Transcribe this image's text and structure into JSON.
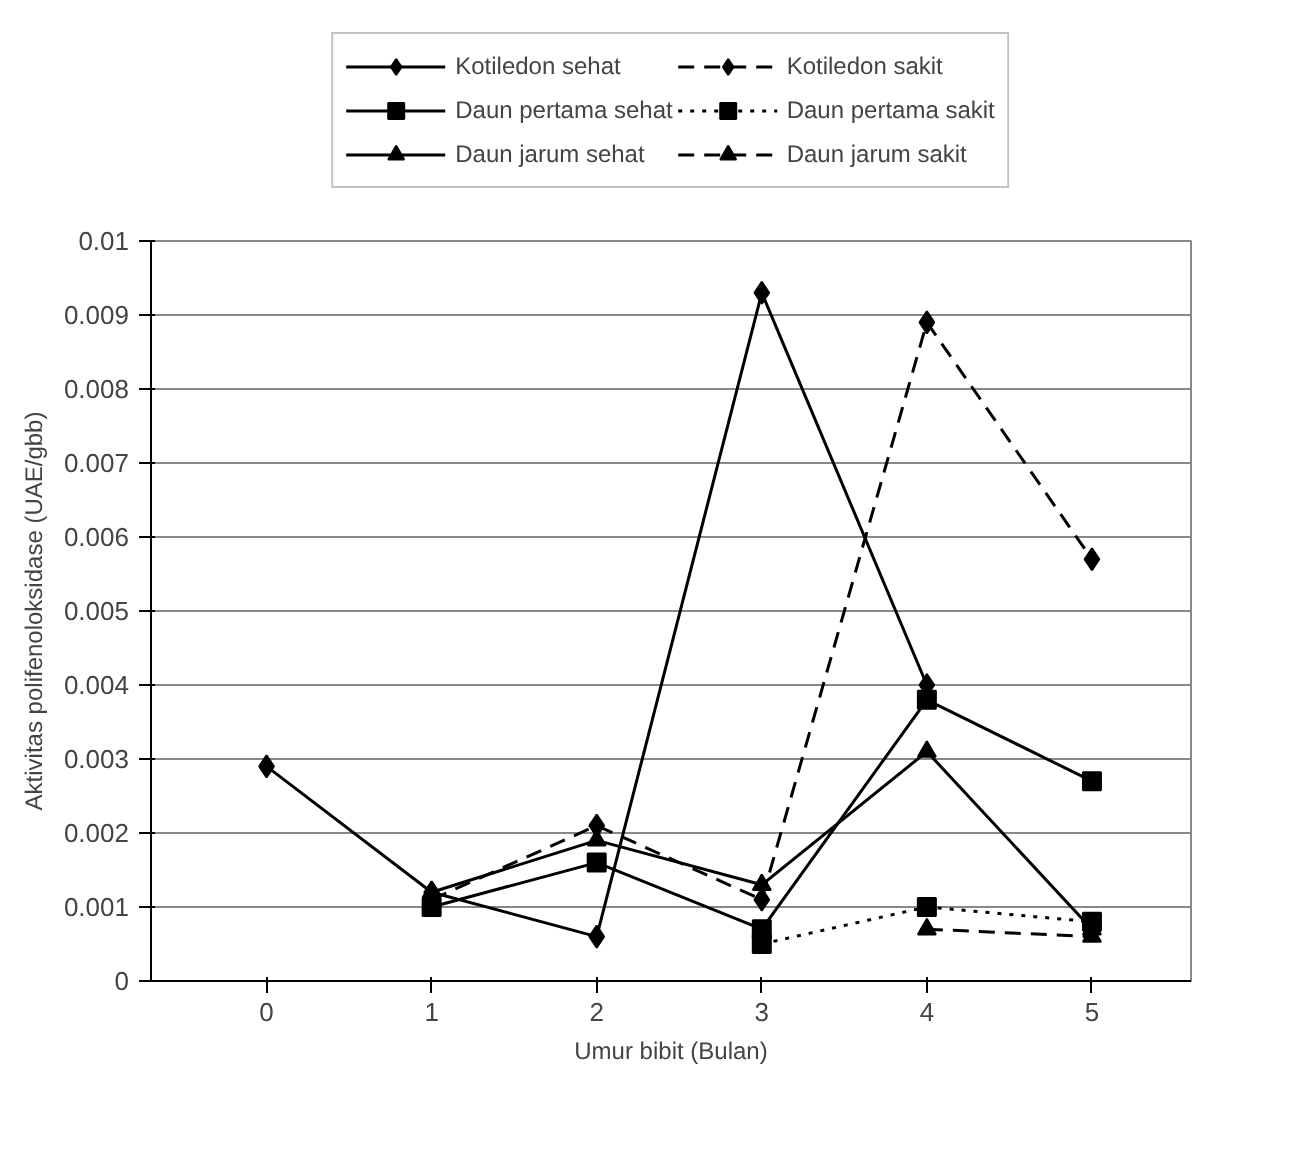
{
  "chart_data": {
    "type": "line",
    "xlabel": "Umur bibit (Bulan)",
    "ylabel": "Aktivitas polifenoloksidase (UAE/gbb)",
    "categories": [
      "0",
      "1",
      "2",
      "3",
      "4",
      "5"
    ],
    "ylim": [
      0,
      0.01
    ],
    "yticks": [
      0,
      0.001,
      0.002,
      0.003,
      0.004,
      0.005,
      0.006,
      0.007,
      0.008,
      0.009,
      0.01
    ],
    "grid": "y",
    "legend": "top",
    "series": [
      {
        "name": "Kotiledon sehat",
        "color": "#000000",
        "marker": "diamond",
        "line_style": "solid",
        "values": [
          0.0029,
          0.0012,
          0.0006,
          0.0093,
          0.004,
          null
        ]
      },
      {
        "name": "Daun pertama sehat",
        "color": "#000000",
        "marker": "square",
        "line_style": "solid",
        "values": [
          null,
          0.001,
          0.0016,
          0.0007,
          0.0038,
          0.0027
        ]
      },
      {
        "name": "Daun jarum sehat",
        "color": "#000000",
        "marker": "triangle",
        "line_style": "solid",
        "values": [
          null,
          0.0012,
          0.0019,
          0.0013,
          0.0031,
          0.0007
        ]
      },
      {
        "name": "Kotiledon sakit",
        "color": "#000000",
        "marker": "diamond",
        "line_style": "dashed",
        "values": [
          null,
          0.0011,
          0.0021,
          0.0011,
          0.0089,
          0.0057
        ]
      },
      {
        "name": "Daun pertama sakit",
        "color": "#000000",
        "marker": "square",
        "line_style": "dotted",
        "values": [
          null,
          null,
          null,
          0.0005,
          0.001,
          0.0008
        ]
      },
      {
        "name": "Daun jarum sakit",
        "color": "#000000",
        "marker": "triangle",
        "line_style": "dashed",
        "values": [
          null,
          null,
          null,
          null,
          0.0007,
          0.0006
        ]
      }
    ]
  }
}
